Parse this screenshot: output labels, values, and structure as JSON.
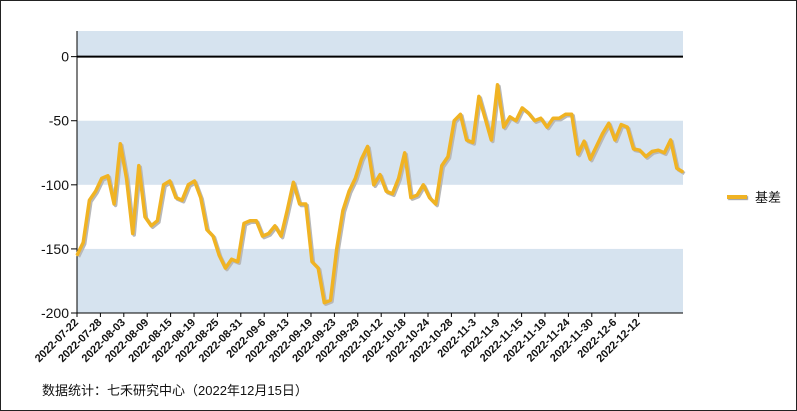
{
  "chart_data": {
    "type": "line",
    "title": "",
    "xlabel": "",
    "ylabel": "",
    "ylim": [
      -200,
      20
    ],
    "yticks": [
      0,
      -50,
      -100,
      -150,
      -200
    ],
    "band_color": "#d6e3ef",
    "line_color": "#f0b323",
    "grid": false,
    "legend_position": "right",
    "x_tick_labels": [
      "2022-07-22",
      "2022-07-28",
      "2022-08-03",
      "2022-08-09",
      "2022-08-15",
      "2022-08-19",
      "2022-08-25",
      "2022-08-31",
      "2022-09-6",
      "2022-09-13",
      "2022-09-19",
      "2022-09-23",
      "2022-09-29",
      "2022-10-12",
      "2022-10-18",
      "2022-10-24",
      "2022-10-28",
      "2022-11-3",
      "2022-11-9",
      "2022-11-15",
      "2022-11-19",
      "2022-11-24",
      "2022-11-30",
      "2022-12-6",
      "2022-12-12"
    ],
    "series": [
      {
        "name": "基差",
        "values": [
          -155,
          -145,
          -112,
          -105,
          -95,
          -93,
          -115,
          -68,
          -95,
          -138,
          -85,
          -125,
          -132,
          -128,
          -100,
          -97,
          -110,
          -112,
          -100,
          -97,
          -110,
          -135,
          -140,
          -155,
          -165,
          -158,
          -160,
          -130,
          -128,
          -128,
          -140,
          -138,
          -132,
          -140,
          -120,
          -98,
          -115,
          -115,
          -160,
          -165,
          -192,
          -190,
          -150,
          -120,
          -105,
          -95,
          -80,
          -70,
          -100,
          -92,
          -105,
          -107,
          -95,
          -75,
          -110,
          -108,
          -100,
          -110,
          -115,
          -85,
          -78,
          -50,
          -45,
          -65,
          -67,
          -31,
          -48,
          -65,
          -22,
          -55,
          -47,
          -50,
          -40,
          -44,
          -50,
          -48,
          -55,
          -48,
          -48,
          -45,
          -45,
          -76,
          -66,
          -80,
          -70,
          -60,
          -52,
          -65,
          -53,
          -55,
          -72,
          -73,
          -78,
          -74,
          -73,
          -75,
          -65,
          -87,
          -90
        ]
      }
    ]
  },
  "footer": {
    "source_note": "数据统计：七禾研究中心（2022年12月15日）"
  }
}
